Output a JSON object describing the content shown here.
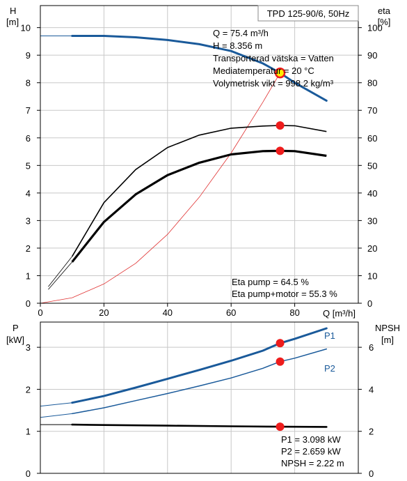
{
  "chart_data": [
    {
      "type": "line",
      "title": "TPD 125-90/6, 50Hz",
      "left_axis_label": [
        "H",
        "[m]"
      ],
      "right_axis_label": [
        "eta",
        "[%]"
      ],
      "xlabel": "Q [m³/h]",
      "xlim": [
        0,
        100
      ],
      "ylim_left": [
        0,
        10.8
      ],
      "ylim_right": [
        0,
        108
      ],
      "x_ticks": [
        "0",
        "20",
        "40",
        "60",
        "80"
      ],
      "y_left_ticks": [
        "0",
        "1",
        "2",
        "3",
        "4",
        "5",
        "6",
        "7",
        "8",
        "9",
        "10"
      ],
      "y_right_ticks": [
        "0",
        "10",
        "20",
        "30",
        "40",
        "50",
        "60",
        "70",
        "80",
        "90",
        "100"
      ],
      "grid": true,
      "series": [
        {
          "axis": "left",
          "color": "#1a5a9a",
          "x": [
            0,
            10,
            20,
            30,
            40,
            50,
            60,
            70,
            75.4,
            80,
            90
          ],
          "y": [
            9.7,
            9.7,
            9.7,
            9.65,
            9.55,
            9.4,
            9.15,
            8.7,
            8.356,
            8.0,
            7.35
          ]
        },
        {
          "axis": "left",
          "color": "#e03030",
          "x": [
            0,
            10,
            20,
            30,
            40,
            50,
            60,
            70,
            75.4
          ],
          "y": [
            0,
            0.2,
            0.7,
            1.45,
            2.5,
            3.85,
            5.45,
            7.3,
            8.356
          ]
        },
        {
          "axis": "right",
          "color": "#000000",
          "x": [
            10,
            20,
            30,
            40,
            50,
            60,
            70,
            75.4,
            80,
            90
          ],
          "y": [
            17,
            36.5,
            48.5,
            56.5,
            61,
            63.5,
            64.3,
            64.5,
            64.4,
            62.3
          ]
        },
        {
          "axis": "right",
          "color": "#000000",
          "x": [
            10,
            20,
            30,
            40,
            50,
            60,
            70,
            75.4,
            80,
            90
          ],
          "y": [
            15,
            29.5,
            39.5,
            46.5,
            51,
            54,
            55.2,
            55.3,
            55.2,
            53.5
          ]
        }
      ],
      "operating_point": {
        "Q": 75.4,
        "H": 8.356,
        "eta_pump": 64.5,
        "eta_pump_motor": 55.3
      },
      "info_lines": [
        "Q = 75.4 m³/h",
        "H = 8.356 m",
        "Transporterad vätska = Vatten",
        "Mediatemperatur = 20 °C",
        "Volymetrisk vikt = 998.2 kg/m³"
      ],
      "eta_lines": [
        "Eta pump = 64.5 %",
        "Eta pump+motor = 55.3 %"
      ]
    },
    {
      "type": "line",
      "left_axis_label": [
        "P",
        "[kW]"
      ],
      "right_axis_label": [
        "NPSH",
        "[m]"
      ],
      "xlim": [
        0,
        100
      ],
      "ylim_left": [
        0,
        3.6
      ],
      "ylim_right": [
        0,
        7.2
      ],
      "y_left_ticks": [
        "0",
        "1",
        "2",
        "3"
      ],
      "y_right_ticks": [
        "0",
        "2",
        "4",
        "6"
      ],
      "grid": true,
      "series": [
        {
          "name": "P1",
          "axis": "left",
          "color": "#1a5a9a",
          "x": [
            0,
            10,
            20,
            30,
            40,
            50,
            60,
            70,
            75.4,
            80,
            90
          ],
          "y": [
            1.6,
            1.68,
            1.84,
            2.04,
            2.25,
            2.46,
            2.68,
            2.92,
            3.098,
            3.2,
            3.45
          ]
        },
        {
          "name": "P2",
          "axis": "left",
          "color": "#1a5a9a",
          "x": [
            0,
            10,
            20,
            30,
            40,
            50,
            60,
            70,
            75.4,
            80,
            90
          ],
          "y": [
            1.33,
            1.42,
            1.56,
            1.73,
            1.9,
            2.08,
            2.27,
            2.5,
            2.659,
            2.74,
            2.96
          ]
        },
        {
          "axis": "right",
          "color": "#000000",
          "x": [
            0,
            10,
            20,
            40,
            60,
            75.4,
            90
          ],
          "y": [
            2.32,
            2.32,
            2.3,
            2.27,
            2.24,
            2.22,
            2.21
          ]
        }
      ],
      "operating_point": {
        "P1": 3.098,
        "P2": 2.659,
        "NPSH": 2.22
      },
      "info_lines": [
        "P1 = 3.098 kW",
        "P2 = 2.659 kW",
        "NPSH = 2.22 m"
      ]
    }
  ]
}
